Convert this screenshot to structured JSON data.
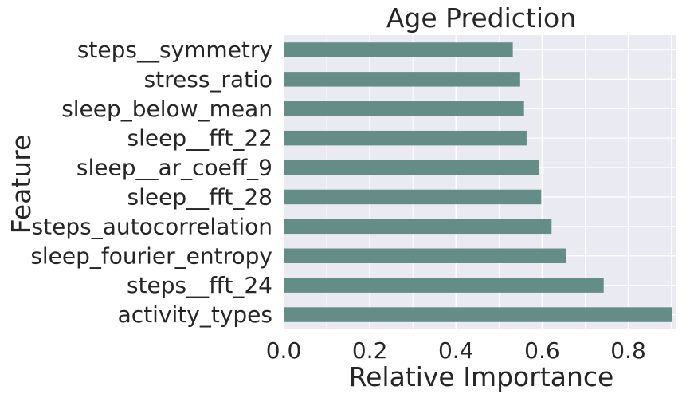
{
  "chart_data": {
    "type": "bar",
    "orientation": "horizontal",
    "title": "Age Prediction",
    "xlabel": "Relative Importance",
    "ylabel": "Feature",
    "xlim": [
      0,
      0.91
    ],
    "xticks": [
      0.0,
      0.2,
      0.4,
      0.6,
      0.8
    ],
    "xtick_labels": [
      "0.0",
      "0.2",
      "0.4",
      "0.6",
      "0.8"
    ],
    "grid": true,
    "legend": "none",
    "categories": [
      "steps__symmetry",
      "stress_ratio",
      "sleep_below_mean",
      "sleep__fft_22",
      "sleep__ar_coeff_9",
      "sleep__fft_28",
      "steps_autocorrelation",
      "sleep_fourier_entropy",
      "steps__fft_24",
      "activity_types"
    ],
    "values": [
      0.532,
      0.549,
      0.558,
      0.564,
      0.592,
      0.598,
      0.622,
      0.655,
      0.743,
      0.902
    ]
  },
  "colors": {
    "bar": "#658d87",
    "plot_background": "#eaeaf2",
    "grid": "#ffffff",
    "text": "#262626"
  }
}
